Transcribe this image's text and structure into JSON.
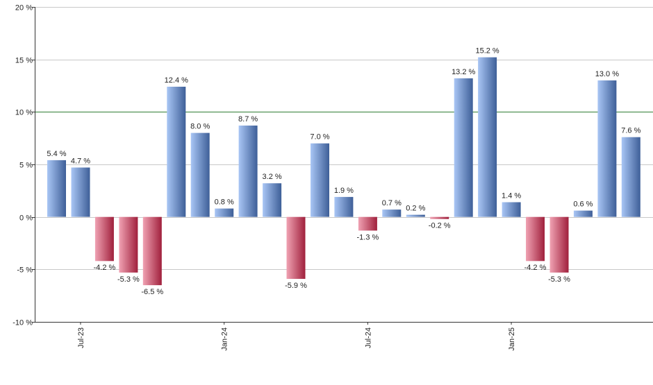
{
  "chart_data": {
    "type": "bar",
    "title": "",
    "xlabel": "",
    "ylabel": "",
    "ylim": [
      -10,
      20
    ],
    "y_ticks": [
      -10,
      -5,
      0,
      5,
      10,
      15,
      20
    ],
    "y_tick_labels": [
      "-10 %",
      "-5 %",
      "0 %",
      "5 %",
      "10 %",
      "15 %",
      "20 %"
    ],
    "grid": true,
    "reference_line": {
      "value": 10,
      "color": "#2e7d32"
    },
    "categories": [
      "2023-06",
      "2023-07",
      "2023-08",
      "2023-09",
      "2023-10",
      "2023-11",
      "2023-12",
      "2024-01",
      "2024-02",
      "2024-03",
      "2024-04",
      "2024-05",
      "2024-06",
      "2024-07",
      "2024-08",
      "2024-09",
      "2024-10",
      "2024-11",
      "2024-12",
      "2025-01",
      "2025-02",
      "2025-03",
      "2025-04",
      "2025-05",
      "2025-06"
    ],
    "values": [
      5.4,
      4.7,
      -4.2,
      -5.3,
      -6.5,
      12.4,
      8.0,
      0.8,
      8.7,
      3.2,
      -5.9,
      7.0,
      1.9,
      -1.3,
      0.7,
      0.2,
      -0.2,
      13.2,
      15.2,
      1.4,
      -4.2,
      -5.3,
      0.6,
      13.0,
      7.6
    ],
    "data_labels": [
      "5.4 %",
      "4.7 %",
      "-4.2 %",
      "-5.3 %",
      "-6.5 %",
      "12.4 %",
      "8.0 %",
      "0.8 %",
      "8.7 %",
      "3.2 %",
      "-5.9 %",
      "7.0 %",
      "1.9 %",
      "-1.3 %",
      "0.7 %",
      "0.2 %",
      "-0.2 %",
      "13.2 %",
      "15.2 %",
      "1.4 %",
      "-4.2 %",
      "-5.3 %",
      "0.6 %",
      "13.0 %",
      "7.6 %"
    ],
    "x_tick_labels": [
      {
        "category": "2023-07",
        "label": "Jul-23"
      },
      {
        "category": "2024-01",
        "label": "Jan-24"
      },
      {
        "category": "2024-07",
        "label": "Jul-24"
      },
      {
        "category": "2025-01",
        "label": "Jan-25"
      }
    ],
    "colors": {
      "positive_light": "#a9c6f5",
      "positive_dark": "#3e5f98",
      "negative_light": "#f0a2b3",
      "negative_dark": "#a0203c",
      "grid": "#c8c8c8",
      "axis": "#333333"
    }
  }
}
